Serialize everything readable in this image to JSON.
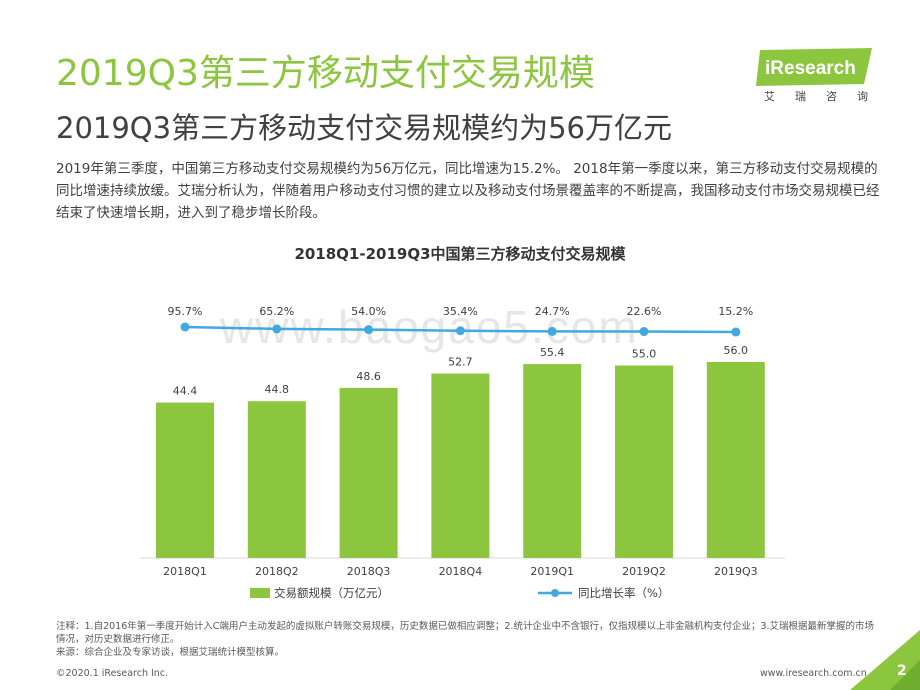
{
  "header": {
    "title": "2019Q3第三方移动支付交易规模",
    "subtitle": "2019Q3第三方移动支付交易规模约为56万亿元"
  },
  "logo": {
    "text": "iResearch",
    "cn": "艾瑞咨询"
  },
  "description": "2019年第三季度，中国第三方移动支付交易规模约为56万亿元，同比增速为15.2%。 2018年第一季度以来，第三方移动支付交易规模的同比增速持续放缓。艾瑞分析认为，伴随着用户移动支付习惯的建立以及移动支付场景覆盖率的不断提高，我国移动支付市场交易规模已经结束了快速增长期，进入到了稳步增长阶段。",
  "watermark": "www.baogao5.com",
  "chart_data": {
    "type": "bar",
    "title": "2018Q1-2019Q3中国第三方移动支付交易规模",
    "categories": [
      "2018Q1",
      "2018Q2",
      "2018Q3",
      "2018Q4",
      "2019Q1",
      "2019Q2",
      "2019Q3"
    ],
    "series": [
      {
        "name": "交易额规模（万亿元）",
        "type": "bar",
        "values": [
          44.4,
          44.8,
          48.6,
          52.7,
          55.4,
          55.0,
          56.0
        ],
        "labels": [
          "44.4",
          "44.8",
          "48.6",
          "52.7",
          "55.4",
          "55.0",
          "56.0"
        ],
        "color": "#8cc63f"
      },
      {
        "name": "同比增长率（%）",
        "type": "line",
        "values": [
          95.7,
          65.2,
          54.0,
          35.4,
          24.7,
          22.6,
          15.2
        ],
        "labels": [
          "95.7%",
          "65.2%",
          "54.0%",
          "35.4%",
          "24.7%",
          "22.6%",
          "15.2%"
        ],
        "color": "#3fa9e0"
      }
    ],
    "legend_position": "bottom",
    "grid": false
  },
  "notes": {
    "line1": "注释：1.自2016年第一季度开始计入C端用户主动发起的虚拟账户转账交易规模，历史数据已做相应调整；2.统计企业中不含银行，仅指规模以上非金融机构支付企业；3.艾瑞根据最新掌握的市场情况，对历史数据进行修正。",
    "line2": "来源：综合企业及专家访谈，根据艾瑞统计模型核算。"
  },
  "footer": {
    "copyright": "©2020.1 iResearch Inc.",
    "url": "www.iresearch.com.cn",
    "page": "2"
  },
  "colors": {
    "brand_green": "#8cc63f",
    "line_blue": "#3fa9e0"
  }
}
